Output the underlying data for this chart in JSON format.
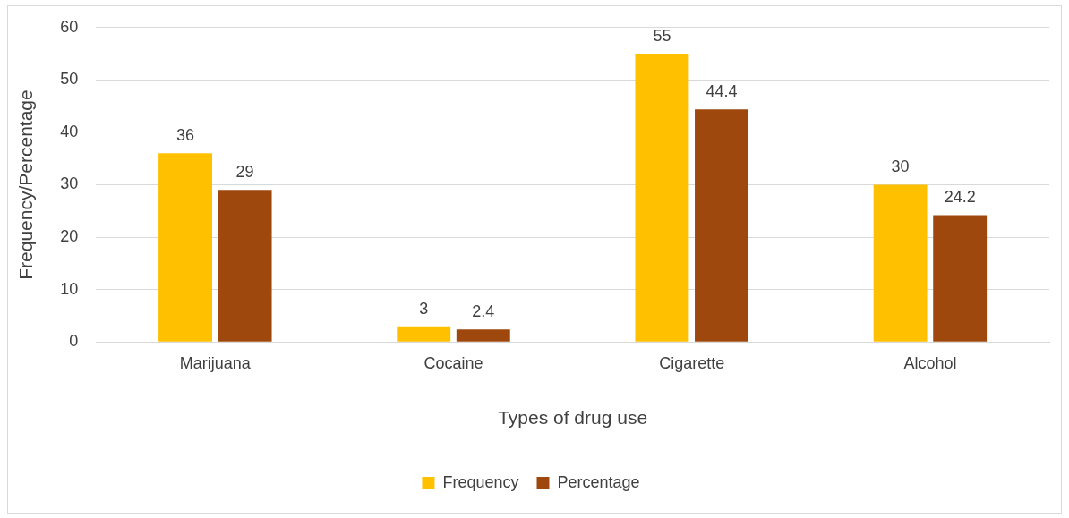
{
  "chart_data": {
    "type": "bar",
    "xlabel": "Types of drug use",
    "ylabel": "Frequency/Percentage",
    "categories": [
      "Marijuana",
      "Cocaine",
      "Cigarette",
      "Alcohol"
    ],
    "series": [
      {
        "name": "Frequency",
        "color": "#ffc000",
        "values": [
          36,
          3,
          55,
          30
        ]
      },
      {
        "name": "Percentage",
        "color": "#9e480e",
        "values": [
          29,
          2.4,
          44.4,
          24.2
        ]
      }
    ],
    "ylim": [
      0,
      60
    ],
    "yticks": [
      0,
      10,
      20,
      30,
      40,
      50,
      60
    ],
    "grid": "y",
    "legend": "bottom",
    "data_labels": true
  }
}
